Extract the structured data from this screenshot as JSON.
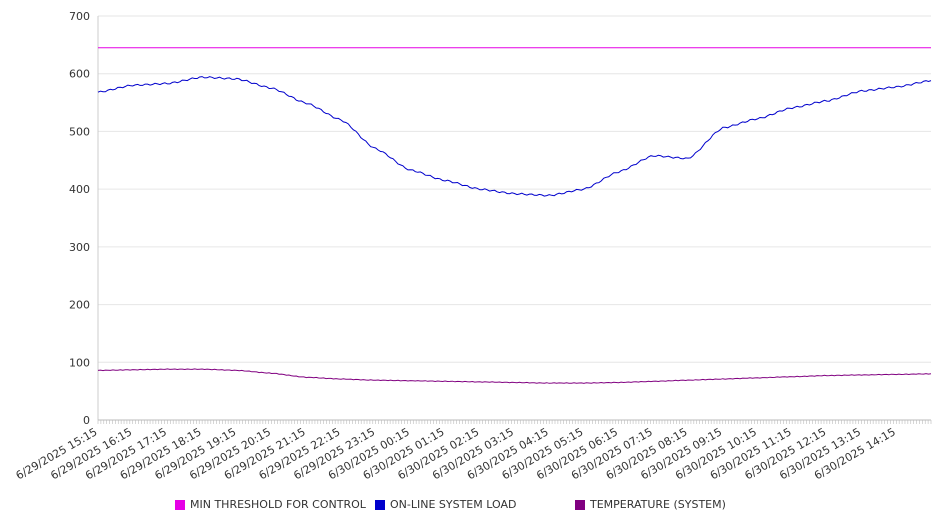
{
  "chart_data": {
    "type": "line",
    "ylim": [
      0,
      700
    ],
    "y_ticks": [
      0,
      100,
      200,
      300,
      400,
      500,
      600,
      700
    ],
    "x_tick_labels": [
      "6/29/2025 15:15",
      "6/29/2025 16:15",
      "6/29/2025 17:15",
      "6/29/2025 18:15",
      "6/29/2025 19:15",
      "6/29/2025 20:15",
      "6/29/2025 21:15",
      "6/29/2025 22:15",
      "6/29/2025 23:15",
      "6/30/2025 00:15",
      "6/30/2025 01:15",
      "6/30/2025 02:15",
      "6/30/2025 03:15",
      "6/30/2025 04:15",
      "6/30/2025 05:15",
      "6/30/2025 06:15",
      "6/30/2025 07:15",
      "6/30/2025 08:15",
      "6/30/2025 09:15",
      "6/30/2025 10:15",
      "6/30/2025 11:15",
      "6/30/2025 12:15",
      "6/30/2025 13:15",
      "6/30/2025 14:15"
    ],
    "x": [
      "6/29/2025 15:15",
      "6/29/2025 16:15",
      "6/29/2025 17:15",
      "6/29/2025 18:15",
      "6/29/2025 19:15",
      "6/29/2025 20:15",
      "6/29/2025 21:15",
      "6/29/2025 22:15",
      "6/29/2025 23:15",
      "6/30/2025 00:15",
      "6/30/2025 01:15",
      "6/30/2025 02:15",
      "6/30/2025 03:15",
      "6/30/2025 04:15",
      "6/30/2025 05:15",
      "6/30/2025 06:15",
      "6/30/2025 07:15",
      "6/30/2025 08:15",
      "6/30/2025 09:15",
      "6/30/2025 10:15",
      "6/30/2025 11:15",
      "6/30/2025 12:15",
      "6/30/2025 13:15",
      "6/30/2025 14:15",
      "6/30/2025 15:15"
    ],
    "series": [
      {
        "name": "MIN THRESHOLD FOR CONTROL",
        "color": "#e600e6",
        "values": [
          645,
          645,
          645,
          645,
          645,
          645,
          645,
          645,
          645,
          645,
          645,
          645,
          645,
          645,
          645,
          645,
          645,
          645,
          645,
          645,
          645,
          645,
          645,
          645,
          645
        ]
      },
      {
        "name": "ON-LINE SYSTEM LOAD",
        "color": "#0000cc",
        "values": [
          568,
          580,
          583,
          594,
          591,
          575,
          549,
          520,
          470,
          433,
          415,
          400,
          392,
          389,
          400,
          430,
          458,
          453,
          506,
          522,
          541,
          553,
          570,
          577,
          588
        ]
      },
      {
        "name": "TEMPERATURE (SYSTEM)",
        "color": "#800080",
        "values": [
          86,
          87,
          88,
          88,
          86,
          81,
          74,
          71,
          69,
          68,
          67,
          66,
          65,
          64,
          64,
          65,
          67,
          69,
          71,
          73,
          75,
          77,
          78,
          79,
          80
        ]
      }
    ],
    "legend_position": "bottom",
    "grid": true
  }
}
